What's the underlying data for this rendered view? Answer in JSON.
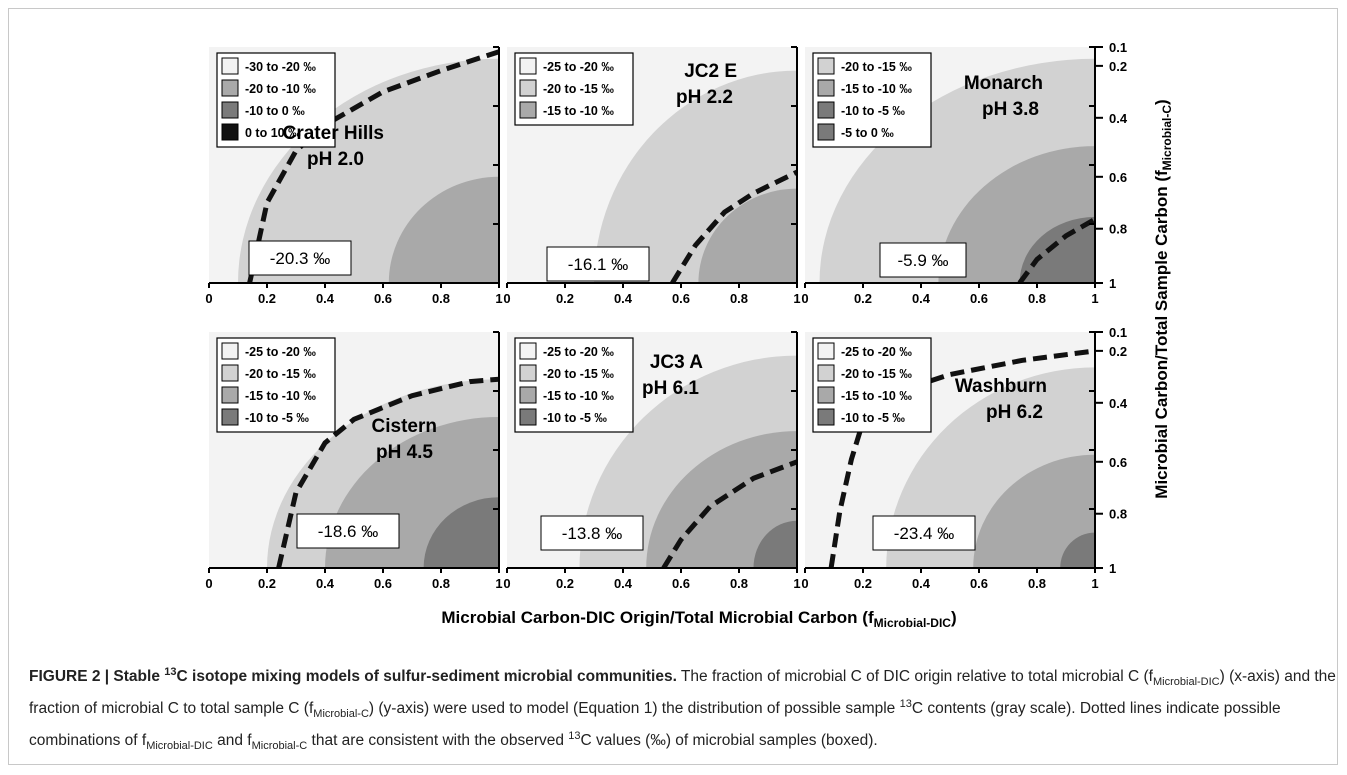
{
  "figure": {
    "x_axis_label": "Microbial Carbon-DIC Origin/Total Microbial Carbon (f",
    "x_axis_label_sub": "Microbial-DIC",
    "x_axis_label_end": ")",
    "y_axis_label": "Microbial Carbon/Total Sample Carbon (f",
    "y_axis_label_sub": "Microbial-C",
    "y_axis_label_end": ")"
  },
  "caption": {
    "lead_a": "FIGURE 2 | Stable ",
    "lead_sup": "13",
    "lead_b": "C isotope mixing models of sulfur-sediment microbial communities.",
    "t1": " The fraction of microbial C of DIC origin relative to total microbial C (f",
    "s1": "Microbial-DIC",
    "t2": ") (x-axis) and the fraction of microbial C to total sample C (f",
    "s2": "Microbial-C",
    "t3": ") (y-axis) were used to model (Equation 1) the distribution of possible sample ",
    "sup1": "13",
    "t4": "C contents (gray scale). Dotted lines indicate possible combinations of f",
    "s3": "Microbial-DIC",
    "t5": " and f",
    "s4": "Microbial-C",
    "t6": " that are consistent with the observed ",
    "sup2": "13",
    "t7": "C values (‰) of microbial samples (boxed)."
  },
  "colors": {
    "shade_0": "#f3f3f3",
    "shade_1": "#d2d2d2",
    "shade_2": "#a9a9a9",
    "shade_3": "#7a7a7a",
    "shade_4": "#111111",
    "dashed_line": "#111111"
  },
  "chart_data": [
    {
      "type": "heatmap",
      "site": "Crater Hills",
      "ph_label": "pH 2.0",
      "observed_value_label": "-20.3 ‰",
      "observed_value": -20.3,
      "legend": [
        "-30 to -20 ‰",
        "-20 to -10 ‰",
        "-10 to 0 ‰",
        "0 to 10 ‰"
      ],
      "legend_shades": [
        0,
        2,
        3,
        4
      ],
      "x_ticks": [
        "0",
        "0.2",
        "0.4",
        "0.6",
        "0.8",
        "1"
      ],
      "y_ticks": [],
      "xlim": [
        0,
        1
      ],
      "ylim": [
        0,
        1
      ],
      "region_shades": [
        0,
        1,
        2
      ],
      "region_boundaries": [
        {
          "x_at_f1": 0.1,
          "y_at_x1": 0.05
        },
        {
          "x_at_f1": 0.62,
          "y_at_x1": 0.55
        }
      ],
      "observed_curve": [
        [
          0.14,
          1.0
        ],
        [
          0.2,
          0.66
        ],
        [
          0.3,
          0.44
        ],
        [
          0.4,
          0.33
        ],
        [
          0.6,
          0.19
        ],
        [
          0.8,
          0.1
        ],
        [
          1.0,
          0.02
        ]
      ]
    },
    {
      "type": "heatmap",
      "site": "JC2 E",
      "ph_label": "pH 2.2",
      "observed_value_label": "-16.1 ‰",
      "observed_value": -16.1,
      "legend": [
        "-25 to -20 ‰",
        "-20 to -15 ‰",
        "-15 to -10 ‰"
      ],
      "legend_shades": [
        0,
        1,
        2
      ],
      "x_ticks": [
        "0",
        "0.2",
        "0.4",
        "0.6",
        "0.8",
        "1"
      ],
      "y_ticks": [],
      "xlim": [
        0,
        1
      ],
      "ylim": [
        0,
        1
      ],
      "region_shades": [
        0,
        1,
        2
      ],
      "region_boundaries": [
        {
          "x_at_f1": 0.3,
          "y_at_x1": 0.1
        },
        {
          "x_at_f1": 0.66,
          "y_at_x1": 0.6
        }
      ],
      "observed_curve": [
        [
          0.57,
          1.0
        ],
        [
          0.65,
          0.84
        ],
        [
          0.75,
          0.7
        ],
        [
          0.85,
          0.62
        ],
        [
          1.0,
          0.53
        ]
      ]
    },
    {
      "type": "heatmap",
      "site": "Monarch",
      "ph_label": "pH 3.8",
      "observed_value_label": "-5.9 ‰",
      "observed_value": -5.9,
      "legend": [
        "-20 to -15 ‰",
        "-15 to -10 ‰",
        "-10 to -5 ‰",
        "-5 to 0 ‰"
      ],
      "legend_shades": [
        1,
        2,
        3,
        3
      ],
      "x_ticks": [
        "0",
        "0.2",
        "0.4",
        "0.6",
        "0.8",
        "1"
      ],
      "y_ticks": [
        "0.1",
        "0.2",
        "0.4",
        "0.6",
        "0.8",
        "1"
      ],
      "xlim": [
        0,
        1
      ],
      "ylim": [
        0,
        1
      ],
      "region_shades": [
        0,
        1,
        2,
        3
      ],
      "region_boundaries": [
        {
          "x_at_f1": 0.05,
          "y_at_x1": 0.05
        },
        {
          "x_at_f1": 0.46,
          "y_at_x1": 0.42
        },
        {
          "x_at_f1": 0.74,
          "y_at_x1": 0.72
        }
      ],
      "observed_curve": [
        [
          0.74,
          1.0
        ],
        [
          0.8,
          0.9
        ],
        [
          0.9,
          0.8
        ],
        [
          1.0,
          0.73
        ]
      ]
    },
    {
      "type": "heatmap",
      "site": "Cistern",
      "ph_label": "pH 4.5",
      "observed_value_label": "-18.6 ‰",
      "observed_value": -18.6,
      "legend": [
        "-25 to -20 ‰",
        "-20 to -15 ‰",
        "-15 to -10 ‰",
        "-10 to -5 ‰"
      ],
      "legend_shades": [
        0,
        1,
        2,
        3
      ],
      "x_ticks": [
        "0",
        "0.2",
        "0.4",
        "0.6",
        "0.8",
        "1"
      ],
      "y_ticks": [],
      "xlim": [
        0,
        1
      ],
      "ylim": [
        0,
        1
      ],
      "region_shades": [
        0,
        1,
        2,
        3
      ],
      "region_boundaries": [
        {
          "x_at_f1": 0.2,
          "y_at_x1": 0.2
        },
        {
          "x_at_f1": 0.4,
          "y_at_x1": 0.36
        },
        {
          "x_at_f1": 0.74,
          "y_at_x1": 0.7
        }
      ],
      "observed_curve": [
        [
          0.24,
          1.0
        ],
        [
          0.3,
          0.68
        ],
        [
          0.4,
          0.47
        ],
        [
          0.5,
          0.37
        ],
        [
          0.7,
          0.27
        ],
        [
          0.9,
          0.21
        ],
        [
          1.0,
          0.2
        ]
      ]
    },
    {
      "type": "heatmap",
      "site": "JC3 A",
      "ph_label": "pH 6.1",
      "observed_value_label": "-13.8 ‰",
      "observed_value": -13.8,
      "legend": [
        "-25 to -20 ‰",
        "-20 to -15 ‰",
        "-15 to -10 ‰",
        "-10 to -5 ‰"
      ],
      "legend_shades": [
        0,
        1,
        2,
        3
      ],
      "x_ticks": [
        "0",
        "0.2",
        "0.4",
        "0.6",
        "0.8",
        "1"
      ],
      "y_ticks": [],
      "xlim": [
        0,
        1
      ],
      "ylim": [
        0,
        1
      ],
      "region_shades": [
        0,
        1,
        2,
        3
      ],
      "region_boundaries": [
        {
          "x_at_f1": 0.25,
          "y_at_x1": 0.1
        },
        {
          "x_at_f1": 0.48,
          "y_at_x1": 0.42
        },
        {
          "x_at_f1": 0.85,
          "y_at_x1": 0.8
        }
      ],
      "observed_curve": [
        [
          0.54,
          1.0
        ],
        [
          0.6,
          0.88
        ],
        [
          0.7,
          0.74
        ],
        [
          0.85,
          0.62
        ],
        [
          1.0,
          0.55
        ]
      ]
    },
    {
      "type": "heatmap",
      "site": "Washburn",
      "ph_label": "pH 6.2",
      "observed_value_label": "-23.4 ‰",
      "observed_value": -23.4,
      "legend": [
        "-25 to -20 ‰",
        "-20 to -15 ‰",
        "-15 to -10 ‰",
        "-10 to -5 ‰"
      ],
      "legend_shades": [
        0,
        1,
        2,
        3
      ],
      "x_ticks": [
        "0",
        "0.2",
        "0.4",
        "0.6",
        "0.8",
        "1"
      ],
      "y_ticks": [
        "0.1",
        "0.2",
        "0.4",
        "0.6",
        "0.8",
        "1"
      ],
      "xlim": [
        0,
        1
      ],
      "ylim": [
        0,
        1
      ],
      "region_shades": [
        0,
        1,
        2,
        3
      ],
      "region_boundaries": [
        {
          "x_at_f1": 0.28,
          "y_at_x1": 0.15
        },
        {
          "x_at_f1": 0.58,
          "y_at_x1": 0.52
        },
        {
          "x_at_f1": 0.88,
          "y_at_x1": 0.85
        }
      ],
      "observed_curve": [
        [
          0.09,
          1.0
        ],
        [
          0.12,
          0.76
        ],
        [
          0.16,
          0.54
        ],
        [
          0.2,
          0.38
        ],
        [
          0.3,
          0.26
        ],
        [
          0.5,
          0.18
        ],
        [
          0.75,
          0.12
        ],
        [
          1.0,
          0.08
        ]
      ]
    }
  ]
}
